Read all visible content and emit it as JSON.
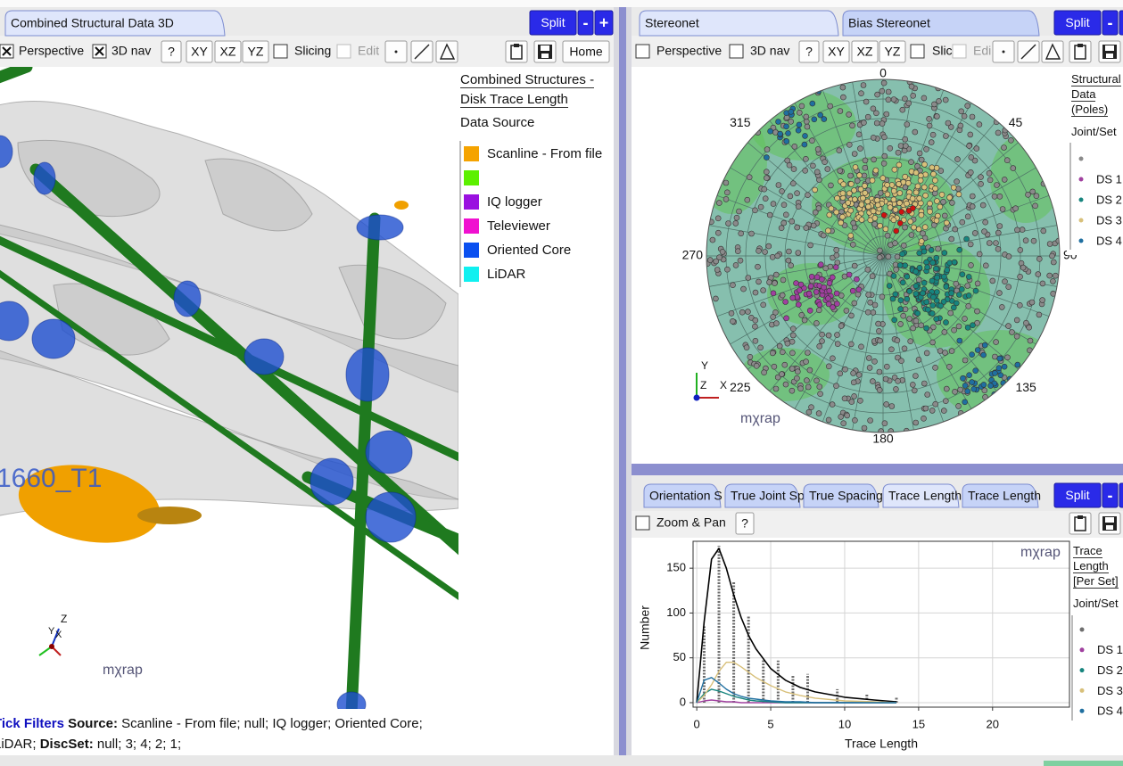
{
  "left_panel": {
    "tab": "Combined Structural Data 3D",
    "split": "Split",
    "minus": "-",
    "plus": "+",
    "toolbar": {
      "perspective": "Perspective",
      "nav": "3D nav",
      "help": "?",
      "xy": "XY",
      "xz": "XZ",
      "yz": "YZ",
      "slicing": "Slicing",
      "edit": "Edit",
      "home": "Home"
    },
    "scene_label": "1660_T1",
    "triad": {
      "z": "Z",
      "y": "Y",
      "x": "X"
    },
    "logo": "mχrap",
    "legend": {
      "title": "Combined Structures - Disk Trace Length",
      "subtitle": "Data Source",
      "items": [
        {
          "label": "Scanline - From file",
          "color": "#f5a300"
        },
        {
          "color": "#5cf000"
        },
        {
          "label": "IQ logger",
          "color": "#9a10e0"
        },
        {
          "label": "Televiewer",
          "color": "#f010d0"
        },
        {
          "label": "Oriented Core",
          "color": "#0a50f0"
        },
        {
          "label": "LiDAR",
          "color": "#10f0f0"
        }
      ]
    },
    "filters": {
      "heading": "Tick Filters",
      "source_label": "Source:",
      "source": "Scanline - From file; null; IQ logger; Oriented Core; LiDAR;",
      "discset_label": "DiscSet:",
      "discset": "null; 3; 4; 2; 1;"
    }
  },
  "stereonet_panel": {
    "tabs": [
      "Stereonet",
      "Bias Stereonet"
    ],
    "split": "Split",
    "minus": "-",
    "plus": "+",
    "toolbar": {
      "perspective": "Perspective",
      "nav": "3D nav",
      "help": "?",
      "xy": "XY",
      "xz": "XZ",
      "yz": "YZ",
      "slicing": "Slic",
      "edit": "Edi"
    },
    "azimuth_labels": [
      "0",
      "45",
      "90",
      "135",
      "180",
      "225",
      "270",
      "315"
    ],
    "triad": {
      "y": "Y",
      "z": "Z",
      "x": "X"
    },
    "logo": "mχrap",
    "legend": {
      "title": "Structural Data (Poles)",
      "subtitle": "Joint/Set",
      "items": [
        {
          "color": "#8a8a8a"
        },
        {
          "label": "DS 1",
          "color": "#a0409f"
        },
        {
          "label": "DS 2",
          "color": "#17857e"
        },
        {
          "label": "DS 3",
          "color": "#d8c07a"
        },
        {
          "label": "DS 4",
          "color": "#1f6fa0"
        }
      ]
    }
  },
  "trace_panel": {
    "tabs": [
      "Orientation S",
      "True Joint Sp",
      "True Spacing",
      "Trace Length",
      "Trace Length"
    ],
    "split": "Split",
    "minus": "-",
    "plus": "+",
    "zoom": "Zoom & Pan",
    "help": "?",
    "logo": "mχrap",
    "legend": {
      "title": "Trace Length [Per Set]",
      "subtitle": "Joint/Set"
    }
  },
  "chart_data": {
    "type": "line",
    "x_label": "Trace Length",
    "y_label": "Number",
    "xlim": [
      -0.25,
      25.2
    ],
    "ylim": [
      -5,
      180
    ],
    "xticks": [
      0,
      5,
      10,
      15,
      20
    ],
    "yticks": [
      0,
      50,
      100,
      150
    ],
    "grid": true,
    "x": [
      0,
      0.5,
      1,
      1.5,
      2,
      2.5,
      3,
      3.5,
      4,
      5,
      6,
      7,
      8,
      10,
      12,
      13.5
    ],
    "series": [
      {
        "color": "#000000",
        "values": [
          0,
          90,
          160,
          172,
          150,
          120,
          95,
          75,
          60,
          38,
          25,
          17,
          12,
          6,
          3,
          1
        ]
      },
      {
        "name": "DS 1",
        "color": "#a0409f",
        "values": [
          0,
          2,
          3,
          2,
          1,
          1,
          0,
          0,
          0,
          0,
          0,
          0,
          0,
          0,
          0,
          0
        ]
      },
      {
        "name": "DS 2",
        "color": "#17857e",
        "values": [
          0,
          10,
          15,
          13,
          10,
          7,
          5,
          3,
          2,
          1,
          0,
          0,
          0,
          0,
          0,
          0
        ]
      },
      {
        "name": "DS 3",
        "color": "#d8c07a",
        "values": [
          0,
          8,
          20,
          35,
          45,
          45,
          40,
          34,
          28,
          19,
          12,
          8,
          5,
          2,
          1,
          0
        ]
      },
      {
        "name": "DS 4",
        "color": "#1f6fa0",
        "values": [
          0,
          25,
          28,
          22,
          15,
          10,
          7,
          5,
          4,
          2,
          1,
          1,
          0,
          0,
          0,
          0
        ]
      }
    ],
    "counts": {
      "color": "#6e6e6e",
      "x": [
        0.5,
        1.5,
        2.5,
        3.5,
        4.5,
        5.5,
        6.5,
        7.5,
        9.5,
        11.5,
        13.5
      ],
      "values": [
        85,
        175,
        135,
        97,
        48,
        47,
        30,
        32,
        15,
        10,
        6
      ]
    }
  }
}
